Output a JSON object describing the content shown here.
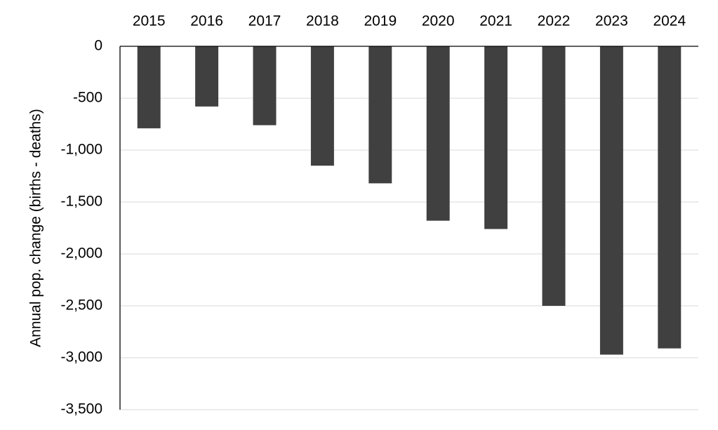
{
  "chart_data": {
    "type": "bar",
    "y_label": "Annual pop. change (births - deaths)",
    "categories": [
      "2015",
      "2016",
      "2017",
      "2018",
      "2019",
      "2020",
      "2021",
      "2022",
      "2023",
      "2024"
    ],
    "values": [
      -790,
      -580,
      -760,
      -1150,
      -1320,
      -1680,
      -1760,
      -2500,
      -2970,
      -2910
    ],
    "color": "#404040",
    "ylim": [
      -3500,
      0
    ],
    "yticks": [
      0,
      -500,
      {
        "value": -1000,
        "label": "-1,000"
      },
      {
        "value": -1500,
        "label": "-1,500"
      },
      {
        "value": -2000,
        "label": "-2,000"
      },
      {
        "value": -2500,
        "label": "-2,500"
      },
      {
        "value": -3000,
        "label": "-3,000"
      },
      {
        "value": -3500,
        "label": "-3,500"
      }
    ],
    "grid": true
  }
}
